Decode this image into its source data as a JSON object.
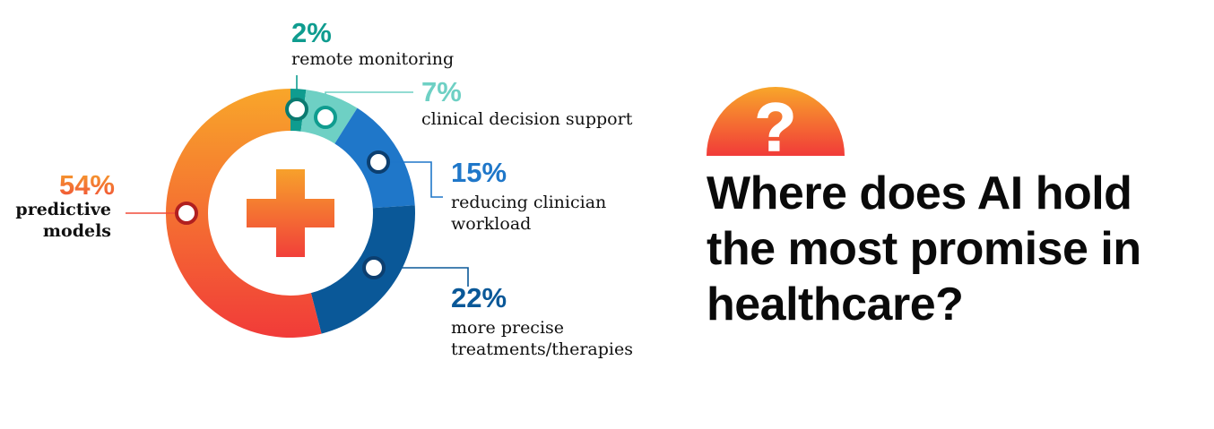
{
  "question": {
    "text": "Where does AI hold the most promise in healthcare?",
    "badge_glyph": "?"
  },
  "chart_data": {
    "type": "pie",
    "title": "",
    "donut": true,
    "slices": [
      {
        "label": "remote monitoring",
        "label_lines": [
          "remote monitoring"
        ],
        "value": 2,
        "display": "2%",
        "color": "#0f9c8f"
      },
      {
        "label": "clinical decision support",
        "label_lines": [
          "clinical decision support"
        ],
        "value": 7,
        "display": "7%",
        "color": "#6ed0c4"
      },
      {
        "label": "reducing clinician workload",
        "label_lines": [
          "reducing clinician",
          "workload"
        ],
        "value": 15,
        "display": "15%",
        "color": "#1f77c9"
      },
      {
        "label": "more precise treatments/therapies",
        "label_lines": [
          "more precise",
          "treatments/therapies"
        ],
        "value": 22,
        "display": "22%",
        "color": "#0a5898"
      },
      {
        "label": "predictive models",
        "label_lines": [
          "predictive",
          "models"
        ],
        "value": 54,
        "display": "54%",
        "color": "#f3792a"
      }
    ],
    "center_icon": "plus-icon"
  }
}
